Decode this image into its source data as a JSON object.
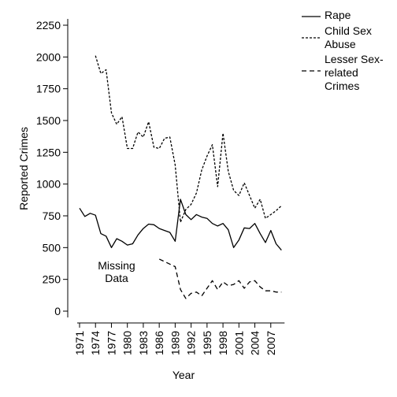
{
  "chart_data": {
    "type": "line",
    "title": "",
    "xlabel": "Year",
    "ylabel": "Reported Crimes",
    "xlim": [
      1971,
      2010
    ],
    "ylim": [
      0,
      2250
    ],
    "x_ticks": [
      "1971",
      "1974",
      "1977",
      "1980",
      "1983",
      "1986",
      "1989",
      "1992",
      "1995",
      "1998",
      "2001",
      "2004",
      "2007"
    ],
    "y_ticks": [
      "0",
      "250",
      "500",
      "750",
      "1000",
      "1250",
      "1500",
      "1750",
      "2000",
      "2250"
    ],
    "grid": false,
    "legend_position": "right",
    "annotation": [
      "Missing",
      "Data"
    ],
    "series": [
      {
        "name": "Rape",
        "style": "solid",
        "x": [
          1971,
          1972,
          1973,
          1974,
          1975,
          1976,
          1977,
          1978,
          1979,
          1980,
          1981,
          1982,
          1983,
          1984,
          1985,
          1986,
          1987,
          1988,
          1989,
          1990,
          1991,
          1992,
          1993,
          1994,
          1995,
          1996,
          1997,
          1998,
          1999,
          2000,
          2001,
          2002,
          2003,
          2004,
          2005,
          2006,
          2007,
          2008,
          2009
        ],
        "values": [
          810,
          745,
          770,
          755,
          610,
          590,
          500,
          570,
          550,
          520,
          530,
          600,
          650,
          685,
          680,
          650,
          635,
          620,
          550,
          880,
          760,
          720,
          760,
          740,
          730,
          690,
          670,
          690,
          640,
          500,
          560,
          655,
          650,
          690,
          610,
          540,
          635,
          530,
          480
        ]
      },
      {
        "name": "Child Sex Abuse",
        "style": "dashed",
        "x": [
          1974,
          1975,
          1976,
          1977,
          1978,
          1979,
          1980,
          1981,
          1982,
          1983,
          1984,
          1985,
          1986,
          1987,
          1988,
          1989,
          1990,
          1991,
          1992,
          1993,
          1994,
          1995,
          1996,
          1997,
          1998,
          1999,
          2000,
          2001,
          2002,
          2003,
          2004,
          2005,
          2006,
          2007,
          2008,
          2009
        ],
        "values": [
          2010,
          1870,
          1900,
          1560,
          1470,
          1530,
          1280,
          1280,
          1410,
          1370,
          1490,
          1290,
          1280,
          1360,
          1370,
          1150,
          700,
          800,
          840,
          930,
          1110,
          1220,
          1310,
          980,
          1400,
          1100,
          950,
          910,
          1010,
          910,
          810,
          880,
          730,
          760,
          790,
          830
        ]
      },
      {
        "name": "Lesser Sex-related Crimes",
        "style": "dashed-long",
        "x": [
          1986,
          1987,
          1988,
          1989,
          1990,
          1991,
          1992,
          1993,
          1994,
          1995,
          1996,
          1997,
          1998,
          1999,
          2000,
          2001,
          2002,
          2003,
          2004,
          2005,
          2006,
          2007,
          2008,
          2009
        ],
        "values": [
          410,
          390,
          370,
          350,
          170,
          100,
          140,
          150,
          120,
          180,
          240,
          170,
          230,
          200,
          210,
          240,
          180,
          230,
          240,
          190,
          160,
          160,
          150,
          150
        ]
      }
    ]
  }
}
